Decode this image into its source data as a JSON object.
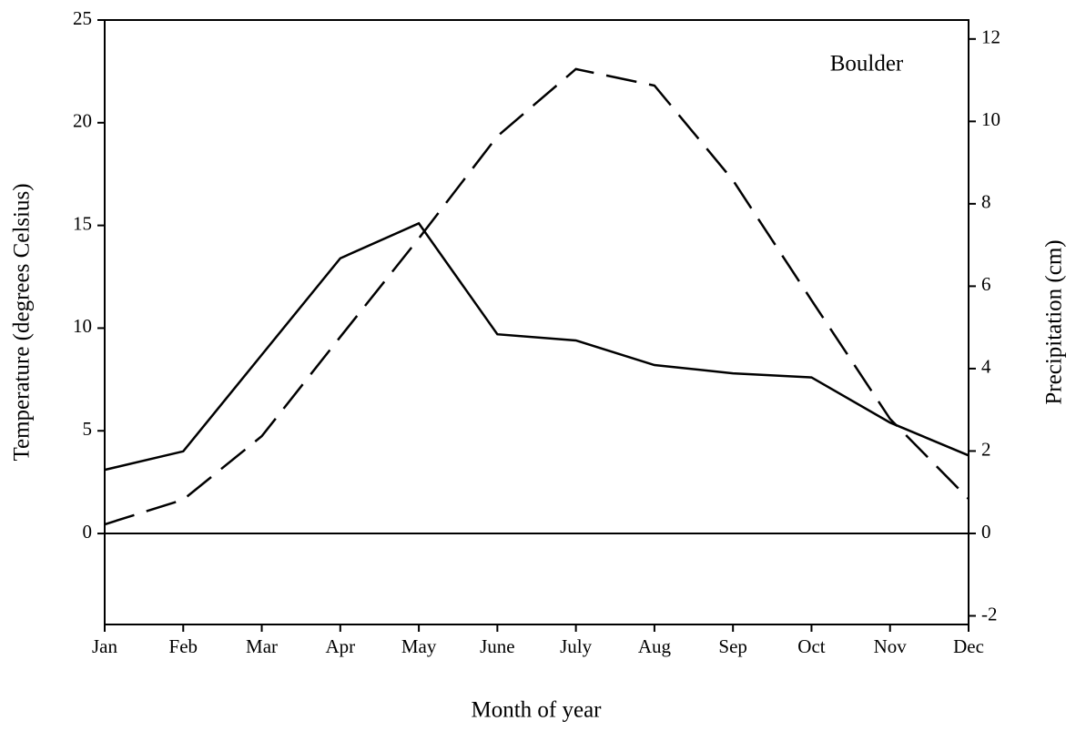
{
  "chart_data": {
    "type": "line",
    "annotation": "Boulder",
    "xlabel": "Month of year",
    "ylabel": "Temperature (degrees Celsius)",
    "y2label": "Precipitation (cm)",
    "categories": [
      "Jan",
      "Feb",
      "Mar",
      "Apr",
      "May",
      "June",
      "July",
      "Aug",
      "Sep",
      "Oct",
      "Nov",
      "Dec"
    ],
    "series": [
      {
        "color": "#000000",
        "dash": "solid",
        "values": [
          3.1,
          4.0,
          8.7,
          13.4,
          15.1,
          9.7,
          9.4,
          8.2,
          7.8,
          7.6,
          5.4,
          3.8
        ]
      },
      {
        "color": "#000000",
        "dash": "dashed",
        "axis": "y2",
        "values": [
          0.22,
          0.82,
          2.36,
          4.77,
          7.16,
          9.64,
          11.27,
          10.87,
          8.57,
          5.66,
          2.78,
          0.84
        ]
      }
    ],
    "ylim": [
      -4.43,
      25
    ],
    "yticks": [
      0,
      5,
      10,
      15,
      20,
      25
    ],
    "y2lim": [
      -2.21,
      12.46
    ],
    "y2ticks": [
      -2,
      0,
      2,
      4,
      6,
      8,
      10,
      12
    ],
    "zero_line": true
  }
}
